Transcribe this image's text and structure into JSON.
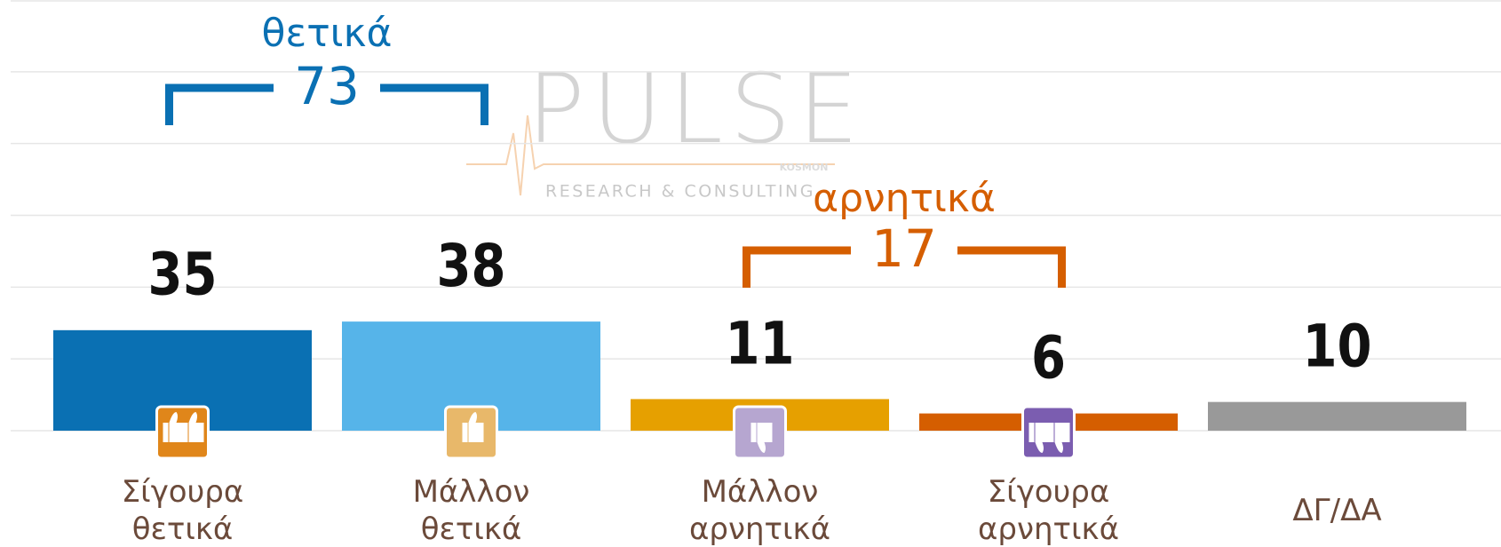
{
  "chart_data": {
    "type": "bar",
    "categories": [
      "Σίγουρα θετικά",
      "Μάλλον θετικά",
      "Μάλλον αρνητικά",
      "Σίγουρα αρνητικά",
      "ΔΓ/ΔΑ"
    ],
    "values": [
      35,
      38,
      11,
      6,
      10
    ],
    "colors": [
      "#0a70b3",
      "#56b4e9",
      "#e6a000",
      "#d55e00",
      "#999999"
    ],
    "ylim": [
      0,
      150
    ],
    "yticks": [
      0,
      25,
      50,
      75,
      100,
      125,
      150
    ],
    "grid": true,
    "groups": [
      {
        "label": "θετικά",
        "value": 73,
        "color": "#0a70b3"
      },
      {
        "label": "αρνητικά",
        "value": 17,
        "color": "#d55e00"
      }
    ],
    "watermark": {
      "brand": "PULSE",
      "tagline": "RESEARCH & CONSULTING",
      "partner": "KOSMON"
    }
  }
}
